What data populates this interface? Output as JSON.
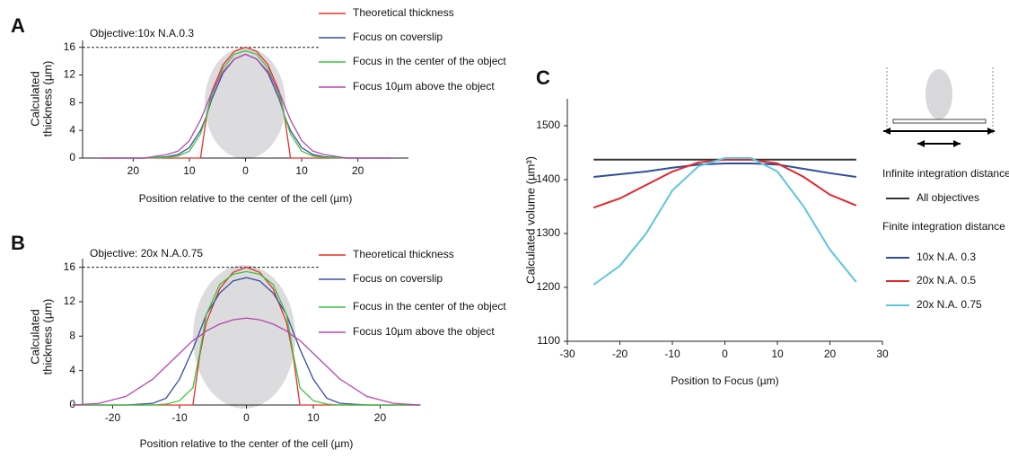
{
  "chart_data": [
    {
      "type": "line",
      "panel": "A",
      "annotation": "Objective:10x N.A.0.3",
      "xlabel": "Position relative to the center of the cell (µm)",
      "ylabel": [
        "Calculated",
        "thickness (µm)"
      ],
      "xlim": [
        -29,
        29
      ],
      "ylim": [
        0,
        17
      ],
      "xticks": [
        {
          "value": -20,
          "label": "20"
        },
        {
          "value": -10,
          "label": "10"
        },
        0,
        10,
        20
      ],
      "yticks": [
        0,
        4,
        8,
        12,
        16
      ],
      "hline": 16,
      "x": [
        -26,
        -22,
        -18,
        -14,
        -12,
        -10,
        -8,
        -7,
        -6,
        -4,
        -2,
        0,
        2,
        4,
        6,
        7,
        8,
        10,
        12,
        14,
        18,
        22,
        26
      ],
      "series": [
        {
          "name": "Theoretical thickness",
          "color": "#e8302a",
          "values": [
            0,
            0,
            0,
            0,
            0,
            0,
            0,
            5.7,
            9.6,
            13.5,
            15.4,
            16,
            15.4,
            13.5,
            9.6,
            5.7,
            0,
            0,
            0,
            0,
            0,
            0,
            0
          ]
        },
        {
          "name": "Focus on coverslip",
          "color": "#3a4fa0",
          "values": [
            0,
            0,
            0,
            0.2,
            0.5,
            1.5,
            4,
            6,
            8.5,
            12.3,
            14.3,
            15,
            14.3,
            12.3,
            8.5,
            6,
            4,
            1.5,
            0.5,
            0.2,
            0,
            0,
            0
          ]
        },
        {
          "name": "Focus in the center of the object",
          "color": "#3cc43c",
          "values": [
            0,
            0,
            0,
            0.1,
            0.3,
            1,
            3.5,
            6,
            9,
            13,
            15,
            15.5,
            15,
            13,
            9,
            6,
            3.5,
            1,
            0.3,
            0.1,
            0,
            0,
            0
          ]
        },
        {
          "name": "Focus 10µm above the object",
          "color": "#b847b0",
          "values": [
            0,
            0,
            0,
            0.5,
            1,
            2.5,
            5.5,
            7.5,
            9.5,
            12.5,
            14.3,
            15,
            14.3,
            12.5,
            9.5,
            7.5,
            5.5,
            2.5,
            1,
            0.5,
            0,
            0,
            0
          ]
        }
      ]
    },
    {
      "type": "line",
      "panel": "B",
      "annotation": "Objective: 20x N.A.0.75",
      "xlabel": "Position relative to the center of the cell (µm)",
      "ylabel": [
        "Calculated",
        "thickness (µm)"
      ],
      "xlim": [
        -24.5,
        24.5
      ],
      "ylim": [
        0,
        17
      ],
      "xticks": [
        -20,
        -10,
        0,
        10,
        20
      ],
      "yticks": [
        0,
        4,
        8,
        12,
        16
      ],
      "hline": 16,
      "x": [
        -26,
        -22,
        -18,
        -14,
        -12,
        -10,
        -8,
        -7,
        -6,
        -4,
        -2,
        0,
        2,
        4,
        6,
        7,
        8,
        10,
        12,
        14,
        18,
        22,
        26
      ],
      "series": [
        {
          "name": "Theoretical thickness",
          "color": "#e8302a",
          "values": [
            0,
            0,
            0,
            0,
            0,
            0,
            0,
            5.7,
            9.6,
            13.5,
            15.4,
            16,
            15.4,
            13.5,
            9.6,
            5.7,
            0,
            0,
            0,
            0,
            0,
            0,
            0
          ]
        },
        {
          "name": "Focus on coverslip",
          "color": "#3a4fa0",
          "values": [
            0,
            0,
            0,
            0.2,
            0.8,
            3,
            6.5,
            8.5,
            10.5,
            13,
            14.4,
            14.8,
            14.4,
            13,
            10.5,
            8.5,
            6.5,
            3,
            0.8,
            0.2,
            0,
            0,
            0
          ]
        },
        {
          "name": "Focus in the center of the object",
          "color": "#3cc43c",
          "values": [
            0,
            0,
            0,
            0,
            0.1,
            0.5,
            2,
            6,
            10.5,
            14,
            15.2,
            15.5,
            15.2,
            14,
            10.5,
            6,
            2,
            0.5,
            0.1,
            0,
            0,
            0,
            0
          ]
        },
        {
          "name": "Focus 10µm above the object",
          "color": "#b847b0",
          "values": [
            0,
            0.2,
            1,
            3,
            4.5,
            6,
            7.5,
            8,
            8.6,
            9.4,
            9.9,
            10.1,
            9.9,
            9.4,
            8.6,
            8,
            7.5,
            6,
            4.5,
            3,
            1,
            0.2,
            0
          ]
        }
      ]
    },
    {
      "type": "line",
      "panel": "C",
      "xlabel": "Position to Focus (µm)",
      "ylabel": [
        "Calculated volume (µm³)"
      ],
      "xlim": [
        -30,
        30
      ],
      "ylim": [
        1100,
        1550
      ],
      "xticks": [
        -30,
        -20,
        -10,
        0,
        10,
        20,
        30
      ],
      "yticks": [
        1100,
        1200,
        1300,
        1400,
        1500
      ],
      "legend_headings": [
        "Infinite integration distance",
        "Finite integration distance"
      ],
      "x": [
        -25,
        -20,
        -15,
        -10,
        -5,
        0,
        5,
        10,
        15,
        20,
        25
      ],
      "series": [
        {
          "name": "All objectives",
          "color": "#333333",
          "values": [
            1437,
            1437,
            1437,
            1437,
            1437,
            1437,
            1437,
            1437,
            1437,
            1437,
            1437
          ]
        },
        {
          "name": "10x N.A. 0.3",
          "color": "#2f4e9c",
          "values": [
            1405,
            1410,
            1415,
            1422,
            1428,
            1430,
            1430,
            1428,
            1420,
            1412,
            1405
          ]
        },
        {
          "name": "20x N.A. 0.5",
          "color": "#e3262a",
          "values": [
            1348,
            1365,
            1390,
            1415,
            1432,
            1437,
            1437,
            1430,
            1405,
            1372,
            1352
          ]
        },
        {
          "name": "20x N.A. 0.75",
          "color": "#5cc6de",
          "values": [
            1205,
            1240,
            1300,
            1380,
            1425,
            1440,
            1440,
            1415,
            1350,
            1270,
            1210
          ]
        }
      ]
    }
  ]
}
